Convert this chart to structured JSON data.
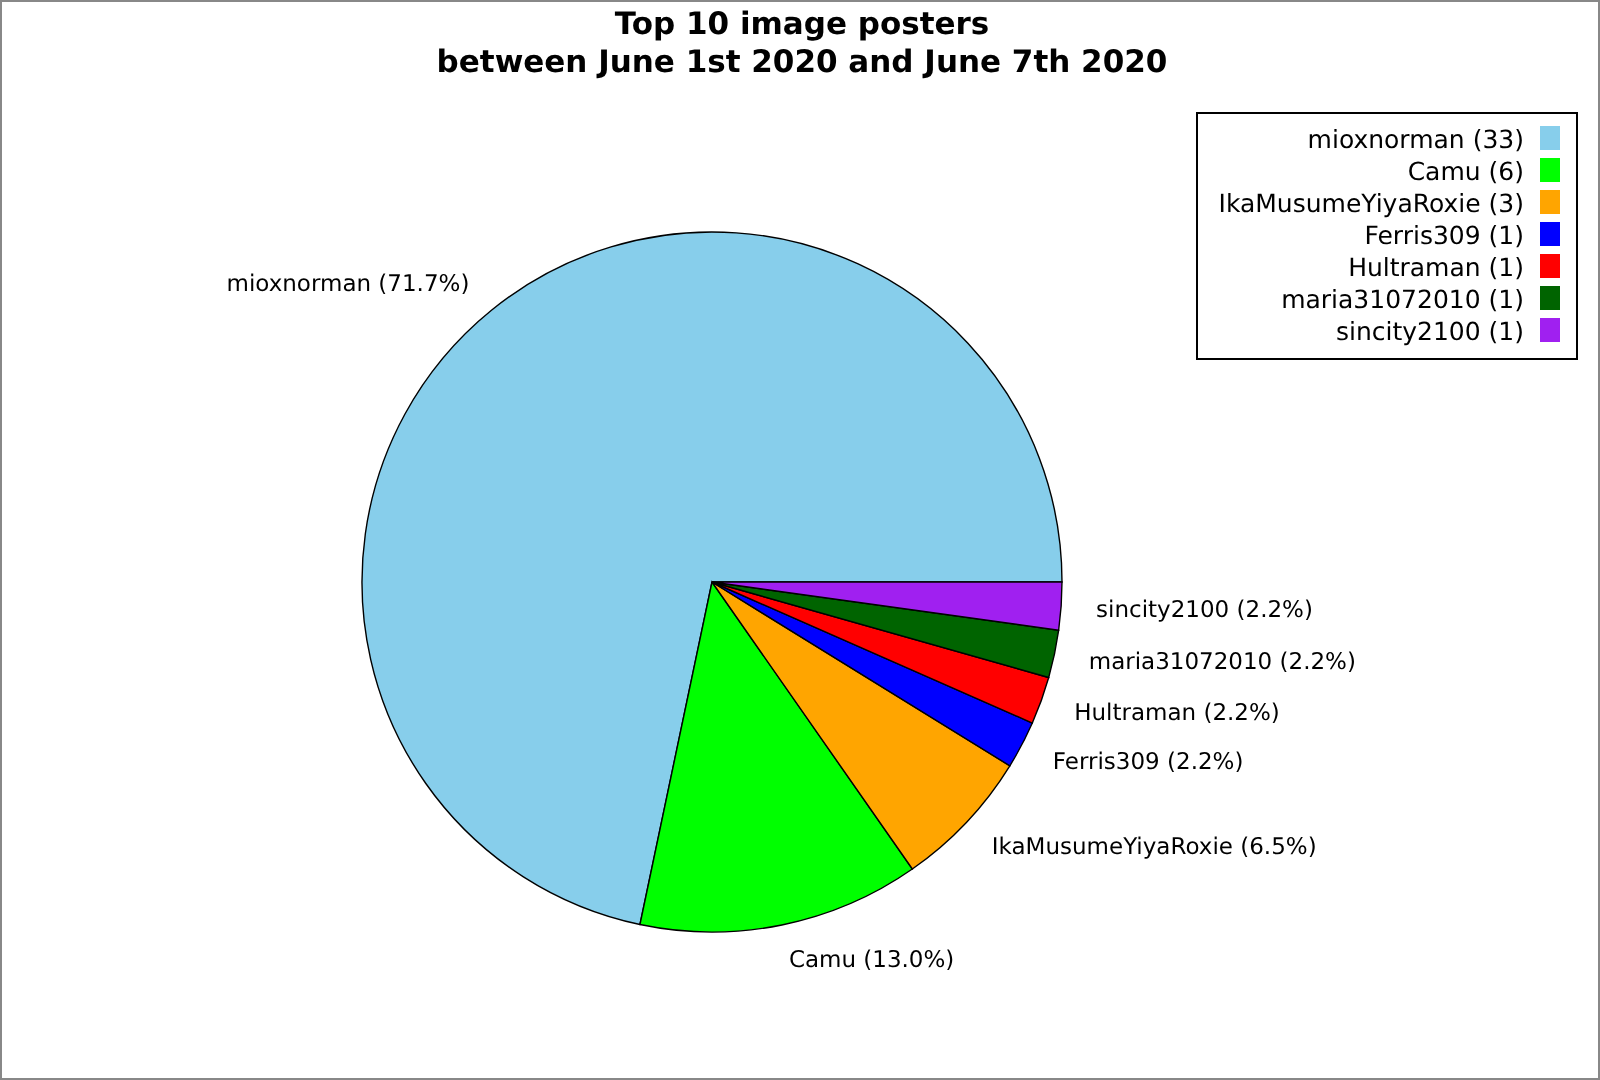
{
  "chart_data": {
    "type": "pie",
    "title": "Top 10 image posters",
    "subtitle": "between June 1st 2020 and June 7th 2020",
    "categories": [
      "mioxnorman (33)",
      "Camu (6)",
      "IkaMusumeYiyaRoxie (3)",
      "Ferris309 (1)",
      "Hultraman (1)",
      "maria31072010 (1)",
      "sincity2100 (1)"
    ],
    "values": [
      71.7,
      13.0,
      6.5,
      2.2,
      2.2,
      2.2,
      2.2
    ],
    "value_labels": [
      "mioxnorman (71.7%)",
      "Camu (13.0%)",
      "IkaMusumeYiyaRoxie (6.5%)",
      "Ferris309 (2.2%)",
      "Hultraman (2.2%)",
      "maria31072010 (2.2%)",
      "sincity2100 (2.2%)"
    ],
    "colors": [
      "#87ceeb",
      "#00ff00",
      "#ffa500",
      "#0000ff",
      "#ff0000",
      "#006400",
      "#a020f0"
    ],
    "legend": "top right"
  }
}
